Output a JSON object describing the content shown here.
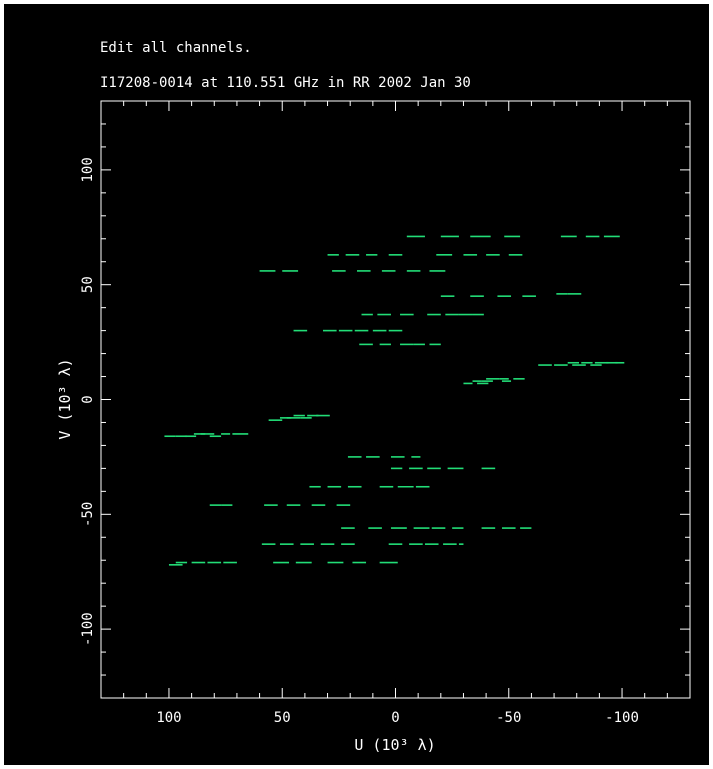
{
  "header": {
    "line1": "Edit all channels.",
    "line2": "I17208-0014 at 110.551 GHz in RR  2002 Jan 30"
  },
  "colors": {
    "background": "#000000",
    "axes": "#ffffff",
    "data": "#22dd77"
  },
  "chart_data": {
    "type": "scatter",
    "title": "",
    "xlabel": "U (10³ λ)",
    "ylabel": "V (10³ λ)",
    "xlim": [
      130,
      -130
    ],
    "ylim": [
      -130,
      130
    ],
    "xticks": [
      100,
      50,
      0,
      -50,
      -100
    ],
    "yticks": [
      100,
      50,
      0,
      -50,
      -100
    ],
    "x_reversed": true,
    "grid": false,
    "series": [
      {
        "marker": "dash",
        "segments": [
          {
            "u_start": -5,
            "u_end": -13,
            "v": 71
          },
          {
            "u_start": -20,
            "u_end": -28,
            "v": 71
          },
          {
            "u_start": -33,
            "u_end": -42,
            "v": 71
          },
          {
            "u_start": -48,
            "u_end": -55,
            "v": 71
          },
          {
            "u_start": -73,
            "u_end": -80,
            "v": 71
          },
          {
            "u_start": -84,
            "u_end": -90,
            "v": 71
          },
          {
            "u_start": -92,
            "u_end": -99,
            "v": 71
          },
          {
            "u_start": 30,
            "u_end": 25,
            "v": 63
          },
          {
            "u_start": 22,
            "u_end": 16,
            "v": 63
          },
          {
            "u_start": 13,
            "u_end": 8,
            "v": 63
          },
          {
            "u_start": 3,
            "u_end": -3,
            "v": 63
          },
          {
            "u_start": -18,
            "u_end": -25,
            "v": 63
          },
          {
            "u_start": -30,
            "u_end": -36,
            "v": 63
          },
          {
            "u_start": -40,
            "u_end": -46,
            "v": 63
          },
          {
            "u_start": -50,
            "u_end": -56,
            "v": 63
          },
          {
            "u_start": 60,
            "u_end": 53,
            "v": 56
          },
          {
            "u_start": 50,
            "u_end": 43,
            "v": 56
          },
          {
            "u_start": 28,
            "u_end": 22,
            "v": 56
          },
          {
            "u_start": 17,
            "u_end": 11,
            "v": 56
          },
          {
            "u_start": 6,
            "u_end": 0,
            "v": 56
          },
          {
            "u_start": -5,
            "u_end": -11,
            "v": 56
          },
          {
            "u_start": -15,
            "u_end": -22,
            "v": 56
          },
          {
            "u_start": -20,
            "u_end": -26,
            "v": 45
          },
          {
            "u_start": -33,
            "u_end": -39,
            "v": 45
          },
          {
            "u_start": -45,
            "u_end": -51,
            "v": 45
          },
          {
            "u_start": -56,
            "u_end": -62,
            "v": 45
          },
          {
            "u_start": -71,
            "u_end": -76,
            "v": 46
          },
          {
            "u_start": -76,
            "u_end": -82,
            "v": 46
          },
          {
            "u_start": 15,
            "u_end": 10,
            "v": 37
          },
          {
            "u_start": 8,
            "u_end": 2,
            "v": 37
          },
          {
            "u_start": -2,
            "u_end": -8,
            "v": 37
          },
          {
            "u_start": -14,
            "u_end": -20,
            "v": 37
          },
          {
            "u_start": -22,
            "u_end": -28,
            "v": 37
          },
          {
            "u_start": -28,
            "u_end": -34,
            "v": 37
          },
          {
            "u_start": -34,
            "u_end": -39,
            "v": 37
          },
          {
            "u_start": 45,
            "u_end": 39,
            "v": 30
          },
          {
            "u_start": 32,
            "u_end": 26,
            "v": 30
          },
          {
            "u_start": 25,
            "u_end": 19,
            "v": 30
          },
          {
            "u_start": 18,
            "u_end": 12,
            "v": 30
          },
          {
            "u_start": 10,
            "u_end": 4,
            "v": 30
          },
          {
            "u_start": 3,
            "u_end": -3,
            "v": 30
          },
          {
            "u_start": 16,
            "u_end": 10,
            "v": 24
          },
          {
            "u_start": 7,
            "u_end": 2,
            "v": 24
          },
          {
            "u_start": -2,
            "u_end": -8,
            "v": 24
          },
          {
            "u_start": -8,
            "u_end": -13,
            "v": 24
          },
          {
            "u_start": -15,
            "u_end": -20,
            "v": 24
          },
          {
            "u_start": -30,
            "u_end": -34,
            "v": 7
          },
          {
            "u_start": -34,
            "u_end": -38,
            "v": 8
          },
          {
            "u_start": -36,
            "u_end": -41,
            "v": 7
          },
          {
            "u_start": -38,
            "u_end": -43,
            "v": 8
          },
          {
            "u_start": -40,
            "u_end": -46,
            "v": 9
          },
          {
            "u_start": -46,
            "u_end": -50,
            "v": 9
          },
          {
            "u_start": -47,
            "u_end": -51,
            "v": 8
          },
          {
            "u_start": -52,
            "u_end": -57,
            "v": 9
          },
          {
            "u_start": -63,
            "u_end": -69,
            "v": 15
          },
          {
            "u_start": -70,
            "u_end": -76,
            "v": 15
          },
          {
            "u_start": -76,
            "u_end": -81,
            "v": 16
          },
          {
            "u_start": -78,
            "u_end": -84,
            "v": 15
          },
          {
            "u_start": -82,
            "u_end": -87,
            "v": 16
          },
          {
            "u_start": -86,
            "u_end": -91,
            "v": 15
          },
          {
            "u_start": -88,
            "u_end": -94,
            "v": 16
          },
          {
            "u_start": -93,
            "u_end": -98,
            "v": 16
          },
          {
            "u_start": -97,
            "u_end": -101,
            "v": 16
          },
          {
            "u_start": 56,
            "u_end": 50,
            "v": -9
          },
          {
            "u_start": 51,
            "u_end": 46,
            "v": -8
          },
          {
            "u_start": 48,
            "u_end": 42,
            "v": -8
          },
          {
            "u_start": 45,
            "u_end": 40,
            "v": -7
          },
          {
            "u_start": 42,
            "u_end": 37,
            "v": -8
          },
          {
            "u_start": 39,
            "u_end": 34,
            "v": -7
          },
          {
            "u_start": 35,
            "u_end": 29,
            "v": -7
          },
          {
            "u_start": 102,
            "u_end": 97,
            "v": -16
          },
          {
            "u_start": 97,
            "u_end": 92,
            "v": -16
          },
          {
            "u_start": 93,
            "u_end": 88,
            "v": -16
          },
          {
            "u_start": 89,
            "u_end": 84,
            "v": -15
          },
          {
            "u_start": 86,
            "u_end": 80,
            "v": -15
          },
          {
            "u_start": 82,
            "u_end": 77,
            "v": -16
          },
          {
            "u_start": 77,
            "u_end": 73,
            "v": -15
          },
          {
            "u_start": 72,
            "u_end": 65,
            "v": -15
          },
          {
            "u_start": 21,
            "u_end": 15,
            "v": -25
          },
          {
            "u_start": 13,
            "u_end": 7,
            "v": -25
          },
          {
            "u_start": 2,
            "u_end": -4,
            "v": -25
          },
          {
            "u_start": -7,
            "u_end": -11,
            "v": -25
          },
          {
            "u_start": 2,
            "u_end": -3,
            "v": -30
          },
          {
            "u_start": -6,
            "u_end": -12,
            "v": -30
          },
          {
            "u_start": -14,
            "u_end": -20,
            "v": -30
          },
          {
            "u_start": -23,
            "u_end": -30,
            "v": -30
          },
          {
            "u_start": -38,
            "u_end": -44,
            "v": -30
          },
          {
            "u_start": 38,
            "u_end": 33,
            "v": -38
          },
          {
            "u_start": 30,
            "u_end": 24,
            "v": -38
          },
          {
            "u_start": 21,
            "u_end": 15,
            "v": -38
          },
          {
            "u_start": 7,
            "u_end": 1,
            "v": -38
          },
          {
            "u_start": -1,
            "u_end": -8,
            "v": -38
          },
          {
            "u_start": -9,
            "u_end": -15,
            "v": -38
          },
          {
            "u_start": 82,
            "u_end": 77,
            "v": -46
          },
          {
            "u_start": 77,
            "u_end": 72,
            "v": -46
          },
          {
            "u_start": 58,
            "u_end": 52,
            "v": -46
          },
          {
            "u_start": 48,
            "u_end": 42,
            "v": -46
          },
          {
            "u_start": 37,
            "u_end": 31,
            "v": -46
          },
          {
            "u_start": 26,
            "u_end": 20,
            "v": -46
          },
          {
            "u_start": 24,
            "u_end": 18,
            "v": -56
          },
          {
            "u_start": 12,
            "u_end": 6,
            "v": -56
          },
          {
            "u_start": 2,
            "u_end": -5,
            "v": -56
          },
          {
            "u_start": -8,
            "u_end": -15,
            "v": -56
          },
          {
            "u_start": -16,
            "u_end": -22,
            "v": -56
          },
          {
            "u_start": -25,
            "u_end": -30,
            "v": -56
          },
          {
            "u_start": -38,
            "u_end": -44,
            "v": -56
          },
          {
            "u_start": -47,
            "u_end": -53,
            "v": -56
          },
          {
            "u_start": -55,
            "u_end": -60,
            "v": -56
          },
          {
            "u_start": 59,
            "u_end": 53,
            "v": -63
          },
          {
            "u_start": 51,
            "u_end": 45,
            "v": -63
          },
          {
            "u_start": 42,
            "u_end": 36,
            "v": -63
          },
          {
            "u_start": 33,
            "u_end": 27,
            "v": -63
          },
          {
            "u_start": 24,
            "u_end": 18,
            "v": -63
          },
          {
            "u_start": 3,
            "u_end": -3,
            "v": -63
          },
          {
            "u_start": -6,
            "u_end": -12,
            "v": -63
          },
          {
            "u_start": -13,
            "u_end": -19,
            "v": -63
          },
          {
            "u_start": -21,
            "u_end": -27,
            "v": -63
          },
          {
            "u_start": -28,
            "u_end": -30,
            "v": -63
          },
          {
            "u_start": 100,
            "u_end": 94,
            "v": -72
          },
          {
            "u_start": 97,
            "u_end": 92,
            "v": -71
          },
          {
            "u_start": 90,
            "u_end": 84,
            "v": -71
          },
          {
            "u_start": 83,
            "u_end": 77,
            "v": -71
          },
          {
            "u_start": 76,
            "u_end": 70,
            "v": -71
          },
          {
            "u_start": 54,
            "u_end": 47,
            "v": -71
          },
          {
            "u_start": 44,
            "u_end": 37,
            "v": -71
          },
          {
            "u_start": 30,
            "u_end": 23,
            "v": -71
          },
          {
            "u_start": 19,
            "u_end": 13,
            "v": -71
          },
          {
            "u_start": 7,
            "u_end": -1,
            "v": -71
          }
        ]
      }
    ]
  }
}
